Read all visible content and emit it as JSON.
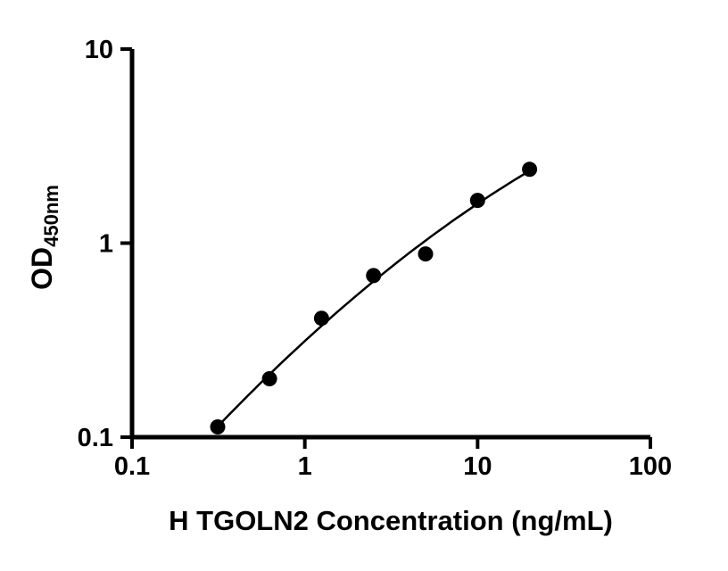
{
  "chart_data": {
    "type": "scatter",
    "title": "",
    "xlabel": "H TGOLN2 Concentration (ng/mL)",
    "ylabel_main": "OD",
    "ylabel_sub": "450nm",
    "x_scale": "log",
    "y_scale": "log",
    "xlim": [
      0.1,
      100
    ],
    "ylim": [
      0.1,
      10
    ],
    "x_ticks": [
      "0.1",
      "1",
      "10",
      "100"
    ],
    "y_ticks": [
      "0.1",
      "1",
      "10"
    ],
    "grid": false,
    "legend": "none",
    "marker_color": "#000000",
    "curve_color": "#000000",
    "fit": "smooth standard-curve fit through points",
    "points": [
      {
        "x": 0.313,
        "y": 0.113
      },
      {
        "x": 0.625,
        "y": 0.2
      },
      {
        "x": 1.25,
        "y": 0.41
      },
      {
        "x": 2.5,
        "y": 0.68
      },
      {
        "x": 5,
        "y": 0.88
      },
      {
        "x": 10,
        "y": 1.66
      },
      {
        "x": 20,
        "y": 2.4
      }
    ]
  }
}
